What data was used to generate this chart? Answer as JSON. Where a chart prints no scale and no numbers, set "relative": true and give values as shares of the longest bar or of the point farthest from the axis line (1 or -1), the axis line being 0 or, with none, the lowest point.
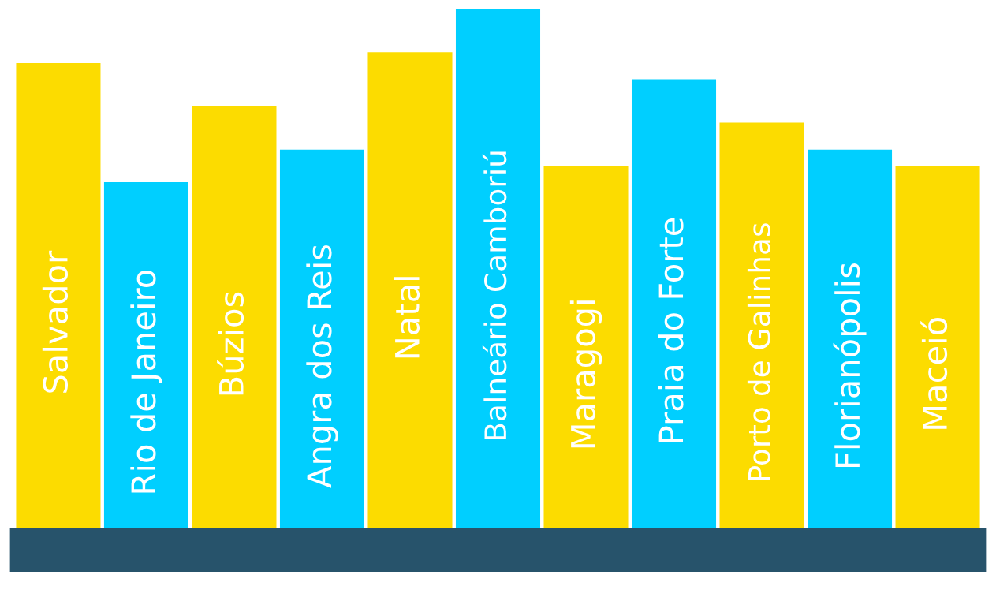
{
  "chart_data": {
    "type": "bar",
    "relative": true,
    "categories": [
      "Salvador",
      "Rio de Janeiro",
      "Búzios",
      "Angra dos Reis",
      "Natal",
      "Balneário Camboriú",
      "Maragogi",
      "Praia do Forte",
      "Porto de Galinhas",
      "Florianópolis",
      "Maceió"
    ],
    "values": [
      0.9,
      0.68,
      0.82,
      0.74,
      0.92,
      1.0,
      0.71,
      0.87,
      0.79,
      0.74,
      0.71
    ],
    "colors": [
      "#fcdc00",
      "#00cfff",
      "#fcdc00",
      "#00cfff",
      "#fcdc00",
      "#00cfff",
      "#fcdc00",
      "#00cfff",
      "#fcdc00",
      "#00cfff",
      "#fcdc00"
    ],
    "legend": false
  }
}
